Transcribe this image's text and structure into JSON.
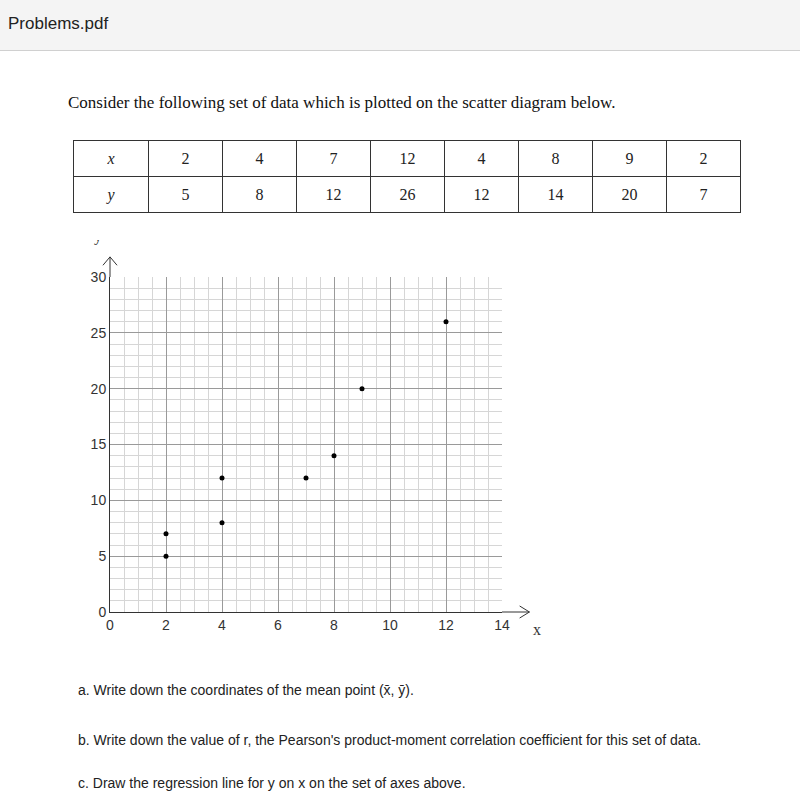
{
  "header": {
    "title": "Problems.pdf"
  },
  "intro": "Consider the following set of data which is plotted on the scatter diagram below.",
  "table": {
    "rows": [
      [
        "x",
        2,
        4,
        7,
        12,
        4,
        8,
        9,
        2
      ],
      [
        "y",
        5,
        8,
        12,
        26,
        12,
        14,
        20,
        7
      ]
    ]
  },
  "chart_data": {
    "type": "scatter",
    "x_label": "x",
    "y_label": "y",
    "x": [
      2,
      4,
      7,
      12,
      4,
      8,
      9,
      2
    ],
    "values": [
      5,
      8,
      12,
      26,
      12,
      14,
      20,
      7
    ],
    "color": "#000000",
    "marker": "circle",
    "xlim": [
      0,
      14
    ],
    "xticks": [
      0,
      2,
      4,
      6,
      8,
      10,
      12,
      14
    ],
    "ylim": [
      0,
      30
    ],
    "yticks": [
      0,
      5,
      10,
      15,
      20,
      25,
      30
    ],
    "grid": true
  },
  "questions": [
    {
      "label": "a.",
      "text": "Write down the coordinates of the mean point (x̄, ȳ)."
    },
    {
      "label": "b.",
      "text": "Write down the value of r, the Pearson's product-moment correlation coefficient for this set of data."
    },
    {
      "label": "c.",
      "text": "Draw the regression line for y on x on the set of axes above."
    }
  ]
}
